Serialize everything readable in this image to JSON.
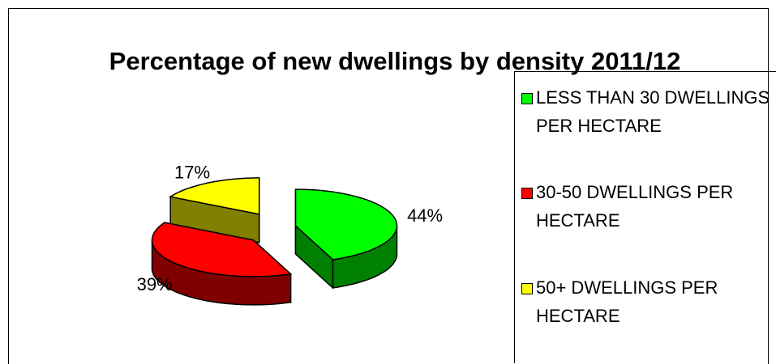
{
  "chart_data": {
    "type": "pie3d",
    "title": "Percentage of new dwellings by density 2011/12",
    "categories": [
      "LESS THAN 30 DWELLINGS PER HECTARE",
      "30-50 DWELLINGS PER HECTARE",
      "50+ DWELLINGS PER HECTARE"
    ],
    "values": [
      44,
      39,
      17
    ],
    "value_labels": [
      "44%",
      "39%",
      "17%"
    ],
    "colors": [
      "#00ff00",
      "#ff0000",
      "#ffff00"
    ],
    "side_colors": [
      "#008000",
      "#800000",
      "#808000"
    ],
    "legend": "right"
  }
}
